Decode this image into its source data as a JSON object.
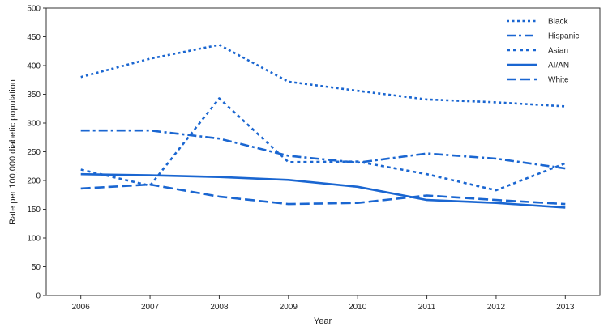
{
  "chart_data": {
    "type": "line",
    "title": "",
    "xlabel": "Year",
    "ylabel": "Rate per 100,000 diabetic population",
    "x": [
      2006,
      2007,
      2008,
      2009,
      2010,
      2011,
      2012,
      2013
    ],
    "xlim": [
      2005.5,
      2013.5
    ],
    "ylim": [
      0,
      500
    ],
    "yticks": [
      0,
      50,
      100,
      150,
      200,
      250,
      300,
      350,
      400,
      450,
      500
    ],
    "grid": false,
    "legend_position": "top-right",
    "line_color": "#1a66d1",
    "series": [
      {
        "name": "Black",
        "style": "dotted",
        "values": [
          380,
          412,
          436,
          372,
          356,
          341,
          336,
          329
        ]
      },
      {
        "name": "Hispanic",
        "style": "dash-dot",
        "values": [
          287,
          287,
          273,
          243,
          231,
          247,
          238,
          221
        ]
      },
      {
        "name": "Asian",
        "style": "short-dash",
        "values": [
          219,
          191,
          343,
          232,
          233,
          211,
          183,
          230
        ]
      },
      {
        "name": "AI/AN",
        "style": "solid",
        "values": [
          211,
          209,
          206,
          201,
          189,
          166,
          161,
          153
        ]
      },
      {
        "name": "White",
        "style": "long-dash",
        "values": [
          186,
          193,
          172,
          159,
          161,
          174,
          166,
          159
        ]
      }
    ]
  }
}
